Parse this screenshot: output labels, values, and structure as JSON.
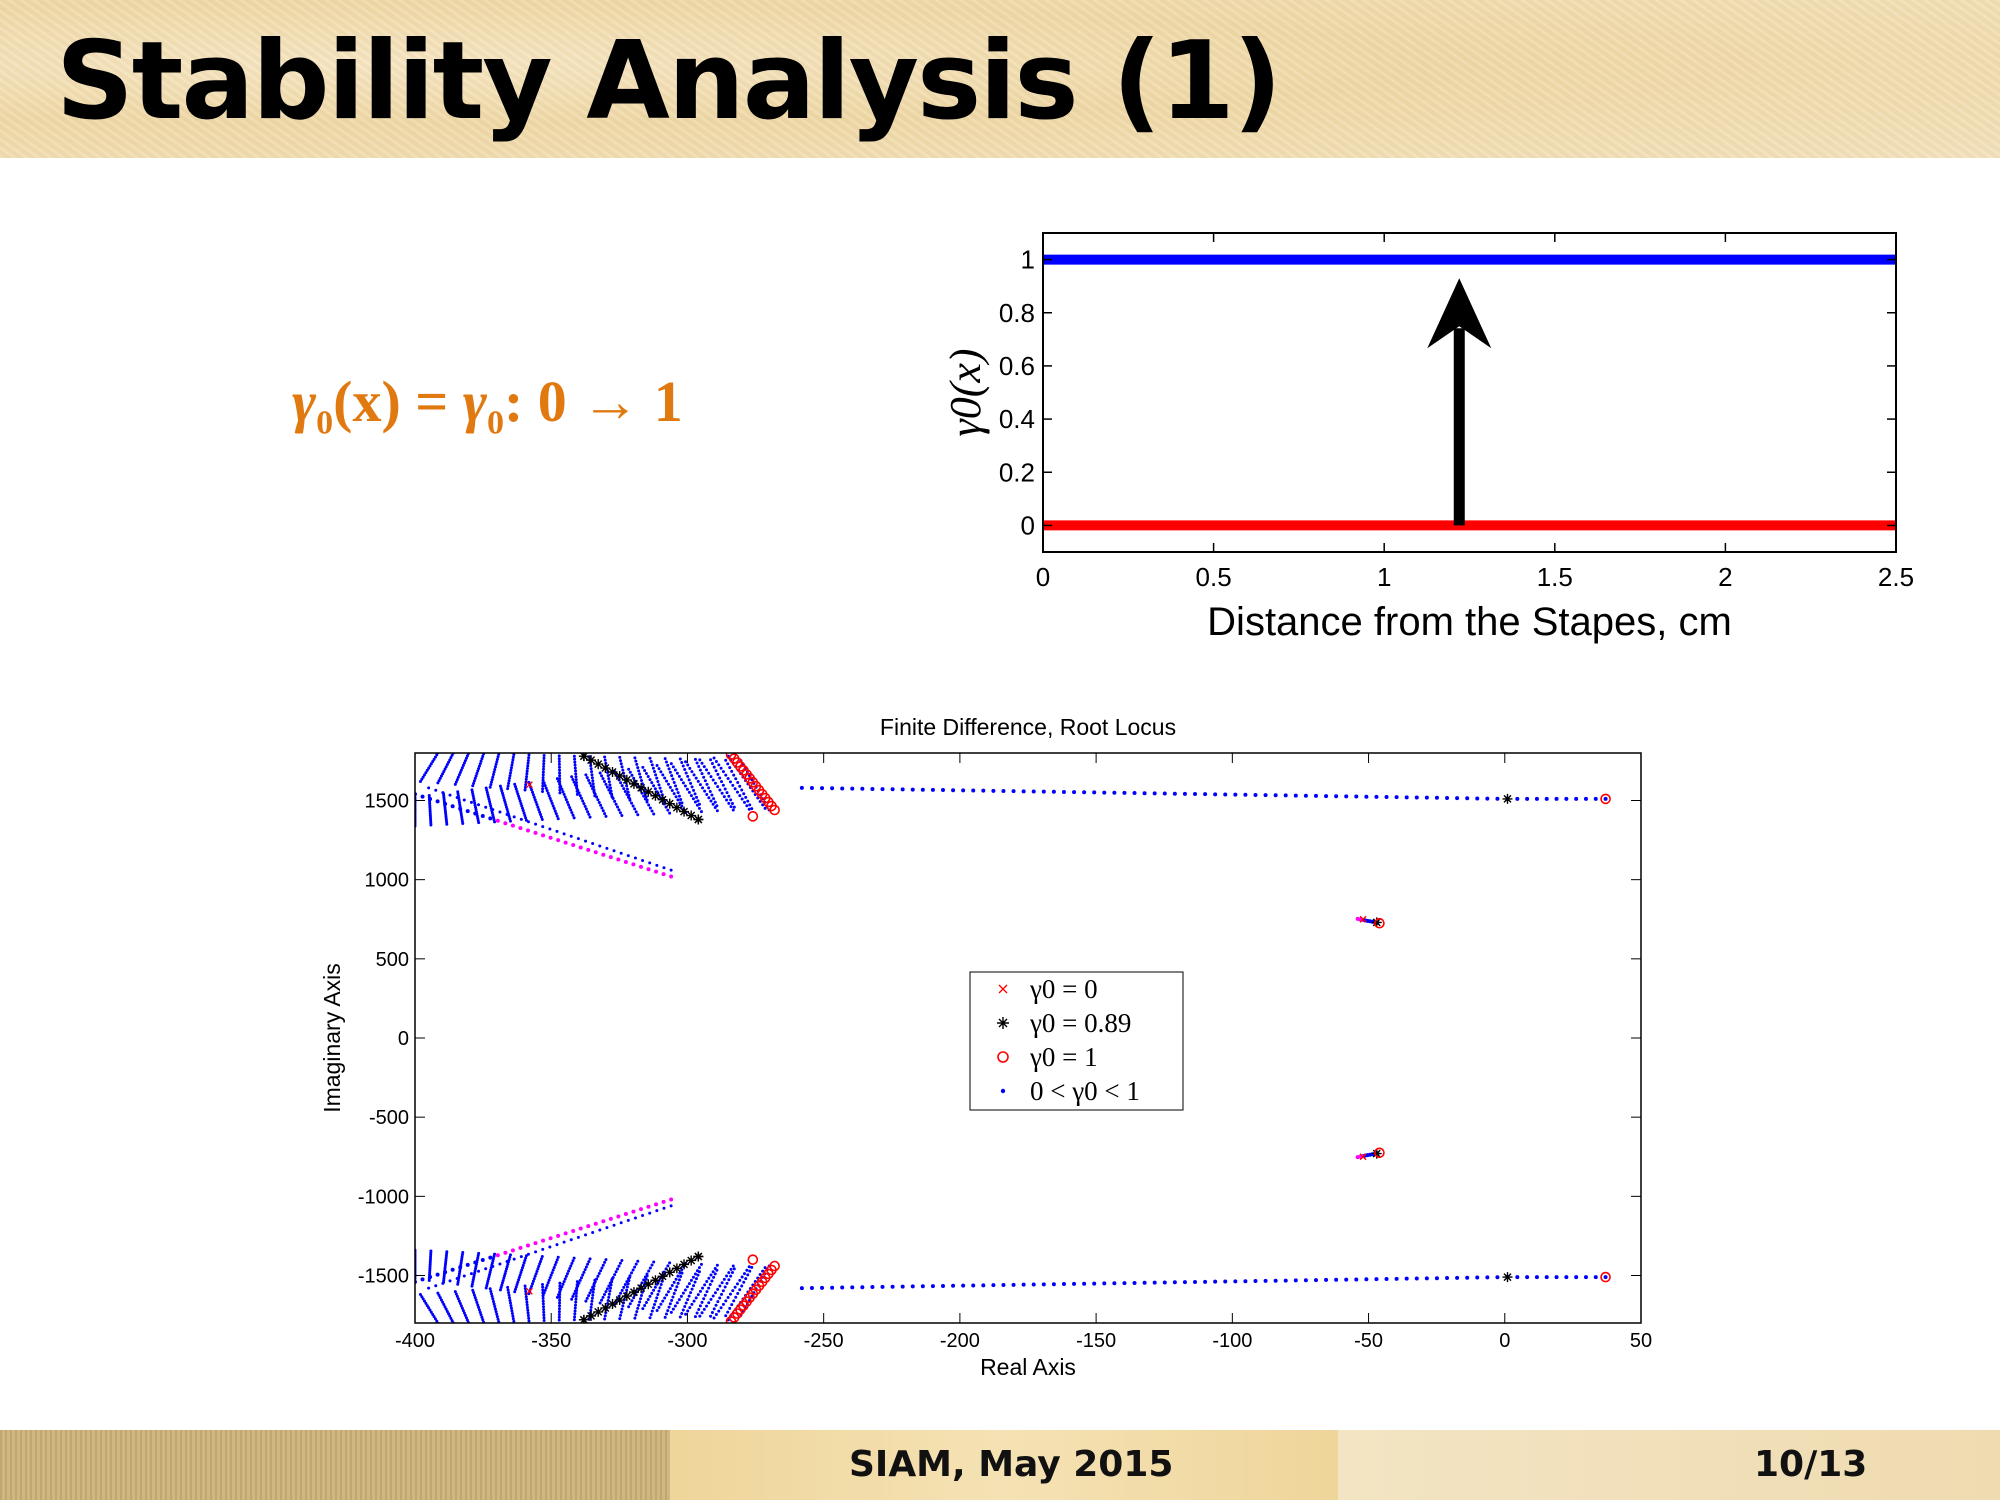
{
  "slide": {
    "title": "Stability Analysis (1)",
    "formula": {
      "lhs": "γ",
      "lhs_sub": "0",
      "lhs_arg": "(x)",
      "eq": " = ",
      "rhs": "γ",
      "rhs_sub": "0",
      "rhs_tail": ": 0 → 1"
    },
    "footer": {
      "center": "SIAM, May 2015",
      "page": "10/13"
    }
  },
  "colors": {
    "blue": "#0000ff",
    "red": "#ff0000",
    "black": "#000000",
    "magenta": "#ff00ff"
  },
  "chart_data": [
    {
      "type": "line",
      "title": "",
      "xlabel": "Distance from the Stapes, cm",
      "ylabel": "γ0(x)",
      "xlim": [
        0,
        2.5
      ],
      "ylim": [
        -0.1,
        1.1
      ],
      "x_ticks": [
        "0",
        "0.5",
        "1",
        "1.5",
        "2",
        "2.5"
      ],
      "y_ticks": [
        "0",
        "0.2",
        "0.4",
        "0.6",
        "0.8",
        "1"
      ],
      "series": [
        {
          "color": "#0000ff",
          "x": [
            0,
            2.5
          ],
          "y": [
            1,
            1
          ]
        },
        {
          "color": "#ff0000",
          "x": [
            0,
            2.5
          ],
          "y": [
            0,
            0
          ]
        }
      ],
      "annotation": {
        "type": "arrow",
        "x": 1.22,
        "from": 0,
        "to": 0.93
      }
    },
    {
      "type": "scatter",
      "title": "Finite Difference, Root Locus",
      "xlabel": "Real Axis",
      "ylabel": "Imaginary Axis",
      "xlim": [
        -400,
        50
      ],
      "ylim": [
        -1800,
        1800
      ],
      "x_ticks": [
        "-400",
        "-350",
        "-300",
        "-250",
        "-200",
        "-150",
        "-100",
        "-50",
        "0",
        "50"
      ],
      "y_ticks": [
        "-1500",
        "-1000",
        "-500",
        "0",
        "500",
        "1000",
        "1500"
      ],
      "legend": {
        "position": "center",
        "entries": [
          "γ0 = 0",
          "γ0 = 0.89",
          "γ0 = 1",
          "0 < γ0 < 1"
        ]
      },
      "roots": {
        "gamma_0": [
          [
            -52,
            750
          ],
          [
            -52,
            -750
          ],
          [
            -358,
            1600
          ],
          [
            -358,
            -1600
          ]
        ],
        "gamma_089": [
          [
            1,
            1510
          ],
          [
            1,
            -1510
          ],
          [
            -47,
            730
          ],
          [
            -47,
            -730
          ],
          [
            -296,
            1380
          ],
          [
            -296,
            -1380
          ],
          [
            -338,
            1780
          ],
          [
            -338,
            -1780
          ]
        ],
        "gamma_1": [
          [
            37,
            1510
          ],
          [
            37,
            -1510
          ],
          [
            -46,
            725
          ],
          [
            -46,
            -725
          ],
          [
            -276,
            1400
          ],
          [
            -276,
            -1400
          ]
        ]
      },
      "branch_locus": {
        "real_from": 1,
        "real_to": -258,
        "imag_from": 1510,
        "imag_to": 1580
      }
    }
  ]
}
